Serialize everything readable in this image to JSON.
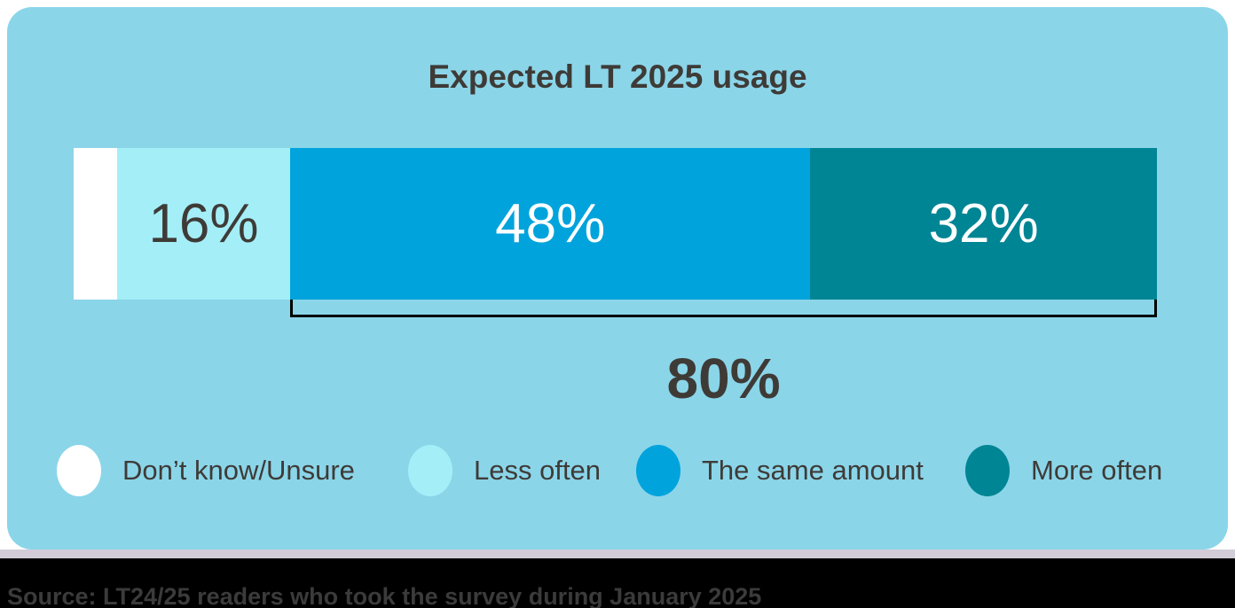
{
  "card": {
    "title": "Expected LT 2025 usage"
  },
  "chart_data": {
    "type": "bar",
    "variant": "horizontal-stacked-single-bar",
    "title": "Expected LT 2025 usage",
    "categories": [
      "Don't know/Unsure",
      "Less often",
      "The same amount",
      "More often"
    ],
    "values": [
      4,
      16,
      48,
      32
    ],
    "unit": "%",
    "segment_labels": [
      "",
      "16%",
      "48%",
      "32%"
    ],
    "colors": [
      "#FFFFFF",
      "#A4EEF8",
      "#00A3DC",
      "#008594"
    ],
    "annotation": {
      "label": "80%",
      "value": 80,
      "spans": [
        "The same amount",
        "More often"
      ]
    },
    "xlim": [
      0,
      100
    ],
    "grid": false,
    "legend_position": "bottom"
  },
  "legend": {
    "items": [
      {
        "label": "Don’t know/Unsure",
        "color": "#FFFFFF"
      },
      {
        "label": "Less often",
        "color": "#A4EEF8"
      },
      {
        "label": "The same amount",
        "color": "#00A3DC"
      },
      {
        "label": "More often",
        "color": "#008594"
      }
    ]
  },
  "source": {
    "text": "Source: LT24/25 readers who took the survey during January 2025"
  },
  "colors": {
    "page_bg": "#FFFFFF",
    "card_bg": "#8BD5E9",
    "footer_bg": "#000000",
    "text_dark": "#3E3B37",
    "bracket": "#000000"
  }
}
